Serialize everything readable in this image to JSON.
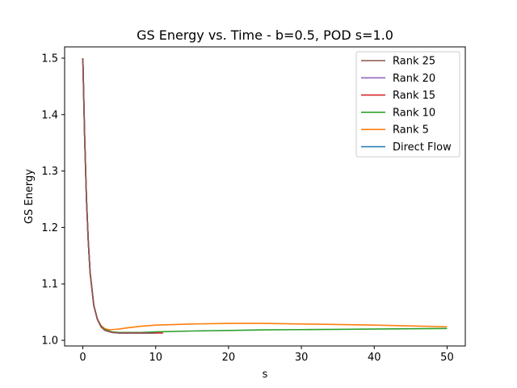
{
  "chart_data": {
    "type": "line",
    "title": "GS Energy vs. Time - b=0.5, POD s=1.0",
    "xlabel": "s",
    "ylabel": "GS Energy",
    "xlim": [
      -2.5,
      52.5
    ],
    "ylim": [
      0.99,
      1.52
    ],
    "xticks": [
      0,
      10,
      20,
      30,
      40,
      50
    ],
    "yticks": [
      1.0,
      1.1,
      1.2,
      1.3,
      1.4,
      1.5
    ],
    "xtick_labels": [
      "0",
      "10",
      "20",
      "30",
      "40",
      "50"
    ],
    "ytick_labels": [
      "1.0",
      "1.1",
      "1.2",
      "1.3",
      "1.4",
      "1.5"
    ],
    "grid": false,
    "legend_position": "top-right",
    "series": [
      {
        "name": "Rank 25",
        "color": "#8c564b",
        "x": [
          0,
          0.25,
          0.5,
          0.75,
          1.0,
          1.5,
          2.0,
          2.5,
          3.0,
          4.0,
          5.0,
          6.0,
          8.0,
          10.0
        ],
        "y": [
          1.5,
          1.36,
          1.25,
          1.175,
          1.12,
          1.062,
          1.037,
          1.024,
          1.018,
          1.014,
          1.013,
          1.013,
          1.013,
          1.013
        ]
      },
      {
        "name": "Rank 20",
        "color": "#9467bd",
        "x": [
          0,
          0.25,
          0.5,
          0.75,
          1.0,
          1.5,
          2.0,
          2.5,
          3.0,
          4.0,
          5.0,
          6.0,
          8.0,
          10.0
        ],
        "y": [
          1.5,
          1.36,
          1.25,
          1.175,
          1.12,
          1.062,
          1.037,
          1.024,
          1.018,
          1.014,
          1.013,
          1.013,
          1.013,
          1.013
        ]
      },
      {
        "name": "Rank 15",
        "color": "#d62728",
        "x": [
          0,
          0.25,
          0.5,
          0.75,
          1.0,
          1.5,
          2.0,
          2.5,
          3.0,
          4.0,
          5.0,
          6.0,
          8.0,
          10.0,
          11.0
        ],
        "y": [
          1.5,
          1.36,
          1.25,
          1.175,
          1.12,
          1.062,
          1.037,
          1.024,
          1.018,
          1.014,
          1.013,
          1.013,
          1.013,
          1.013,
          1.013
        ]
      },
      {
        "name": "Rank 10",
        "color": "#2ca02c",
        "x": [
          0,
          0.25,
          0.5,
          0.75,
          1.0,
          1.5,
          2.0,
          2.5,
          3.0,
          4.0,
          5.0,
          6.0,
          8.0,
          10.0,
          15.0,
          20.0,
          25.0,
          30.0,
          35.0,
          40.0,
          45.0,
          50.0
        ],
        "y": [
          1.5,
          1.36,
          1.25,
          1.175,
          1.12,
          1.062,
          1.037,
          1.025,
          1.019,
          1.015,
          1.014,
          1.014,
          1.014,
          1.015,
          1.0165,
          1.0175,
          1.0185,
          1.019,
          1.0195,
          1.02,
          1.0205,
          1.021
        ]
      },
      {
        "name": "Rank 5",
        "color": "#ff7f0e",
        "x": [
          0,
          0.25,
          0.5,
          0.75,
          1.0,
          1.5,
          2.0,
          2.5,
          3.0,
          3.5,
          4.0,
          5.0,
          6.0,
          8.0,
          10.0,
          15.0,
          20.0,
          25.0,
          30.0,
          35.0,
          40.0,
          45.0,
          50.0
        ],
        "y": [
          1.5,
          1.36,
          1.25,
          1.175,
          1.12,
          1.062,
          1.038,
          1.026,
          1.021,
          1.019,
          1.019,
          1.02,
          1.022,
          1.025,
          1.027,
          1.029,
          1.03,
          1.03,
          1.029,
          1.028,
          1.027,
          1.0255,
          1.024
        ]
      },
      {
        "name": "Direct Flow",
        "color": "#1f77b4",
        "x": [
          0,
          0.25,
          0.5,
          0.75,
          1.0,
          1.5,
          2.0,
          2.5,
          3.0,
          4.0,
          5.0,
          6.0,
          8.0,
          10.0
        ],
        "y": [
          1.5,
          1.36,
          1.25,
          1.175,
          1.12,
          1.062,
          1.037,
          1.024,
          1.018,
          1.014,
          1.013,
          1.013,
          1.013,
          1.013
        ]
      }
    ]
  }
}
